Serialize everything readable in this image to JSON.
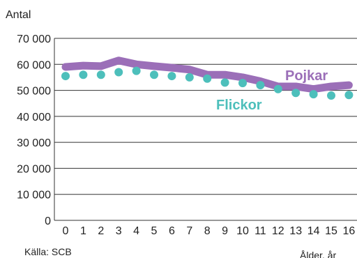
{
  "chart_data": {
    "type": "line",
    "ylabel": "Antal",
    "xlabel": "Ålder, år",
    "source": "Källa: SCB",
    "categories": [
      "0",
      "1",
      "2",
      "3",
      "4",
      "5",
      "6",
      "7",
      "8",
      "9",
      "10",
      "11",
      "12",
      "13",
      "14",
      "15",
      "16"
    ],
    "ylim": [
      0,
      70000
    ],
    "ytick_labels": [
      "0",
      "10 000",
      "20 000",
      "30 000",
      "40 000",
      "50 000",
      "60 000",
      "70 000"
    ],
    "series": [
      {
        "name": "Pojkar",
        "color": "#9b6fb8",
        "style": "thick-line",
        "values": [
          59000,
          59500,
          59300,
          61500,
          60000,
          59300,
          58700,
          58000,
          56000,
          56000,
          55000,
          53500,
          51500,
          51500,
          50500,
          51500,
          52000
        ]
      },
      {
        "name": "Flickor",
        "color": "#4dbfbb",
        "style": "dots",
        "values": [
          55500,
          56000,
          56000,
          57000,
          57500,
          56000,
          55500,
          55000,
          54500,
          53000,
          52800,
          52000,
          50500,
          49000,
          48500,
          48000,
          48200
        ]
      }
    ]
  }
}
